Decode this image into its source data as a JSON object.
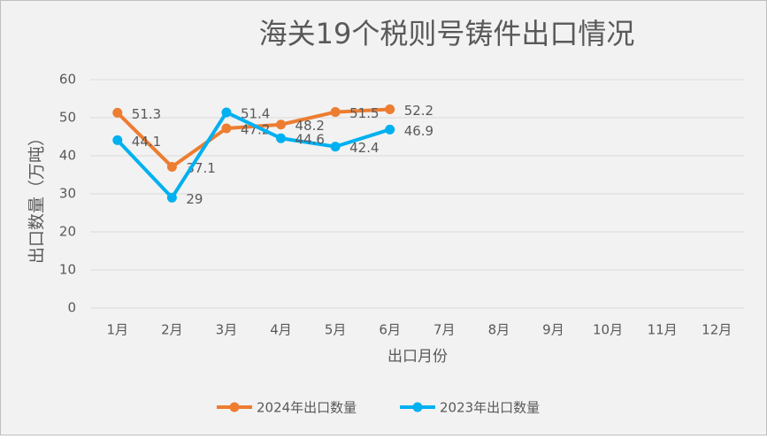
{
  "chart_data": {
    "type": "line",
    "title": "海关19个税则号铸件出口情况",
    "x_label": "出口月份",
    "y_label": "出口数量（万吨）",
    "categories": [
      "1月",
      "2月",
      "3月",
      "4月",
      "5月",
      "6月",
      "7月",
      "8月",
      "9月",
      "10月",
      "11月",
      "12月"
    ],
    "series": [
      {
        "name": "2024年出口数量",
        "color": "#ed7d31",
        "values": [
          51.3,
          37.1,
          47.2,
          48.2,
          51.5,
          52.2,
          null,
          null,
          null,
          null,
          null,
          null
        ]
      },
      {
        "name": "2023年出口数量",
        "color": "#00b0f0",
        "values": [
          44.1,
          29,
          51.4,
          44.6,
          42.4,
          46.9,
          null,
          null,
          null,
          null,
          null,
          null
        ]
      }
    ],
    "ylim": [
      0,
      60
    ],
    "yticks": [
      0,
      10,
      20,
      30,
      40,
      50,
      60
    ],
    "grid": true,
    "legend": "bottom"
  }
}
